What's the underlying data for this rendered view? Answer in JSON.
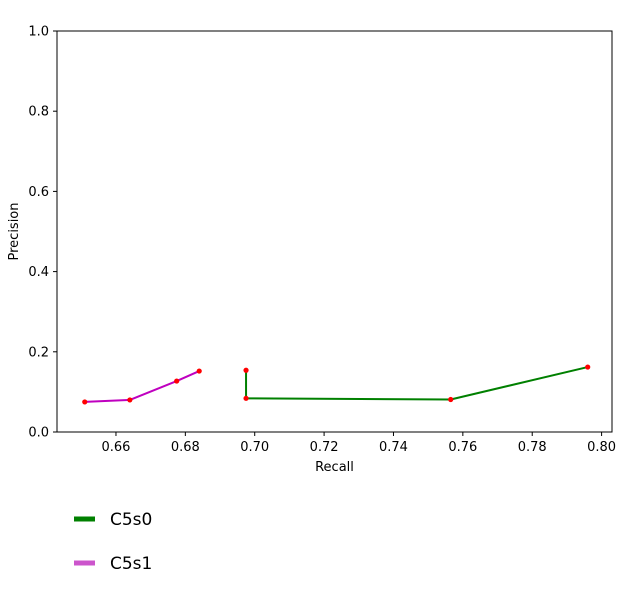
{
  "chart_data": {
    "type": "line",
    "title": "",
    "xlabel": "Recall",
    "ylabel": "Precision",
    "xlim": [
      0.643,
      0.803
    ],
    "ylim": [
      0.0,
      1.0
    ],
    "xticks": [
      "0.66",
      "0.68",
      "0.70",
      "0.72",
      "0.74",
      "0.76",
      "0.78",
      "0.80"
    ],
    "yticks": [
      "0.0",
      "0.2",
      "0.4",
      "0.6",
      "0.8",
      "1.0"
    ],
    "grid": false,
    "legend_position": "below",
    "marker_color": "#ff0000",
    "series": [
      {
        "name": "C5s0",
        "color": "#008000",
        "legend_color": "#008000",
        "x": [
          0.6975,
          0.6975,
          0.7565,
          0.796
        ],
        "y": [
          0.154,
          0.084,
          0.081,
          0.162
        ]
      },
      {
        "name": "C5s1",
        "color": "#bf00bf",
        "legend_color": "#cc55cc",
        "x": [
          0.651,
          0.664,
          0.6775,
          0.684
        ],
        "y": [
          0.075,
          0.08,
          0.127,
          0.152
        ]
      }
    ]
  }
}
